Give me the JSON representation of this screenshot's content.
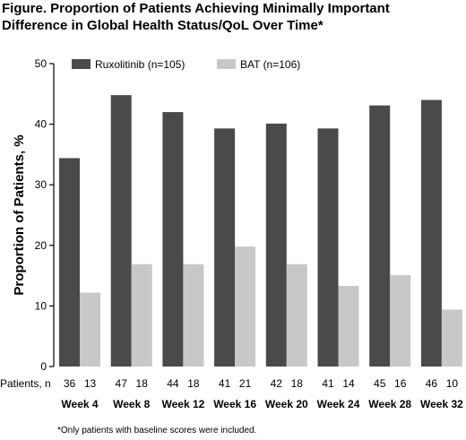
{
  "title_lines": [
    "Figure. Proportion of Patients Achieving Minimally Important",
    "Difference in Global Health Status/QoL Over Time*"
  ],
  "footnote": "*Only patients with baseline scores were included.",
  "patients_label": "Patients, n",
  "colors": {
    "ruxolitinib": "#4a4a4a",
    "bat": "#c8c8c8",
    "axis": "#000000"
  },
  "chart_data": {
    "type": "bar",
    "title": "Figure. Proportion of Patients Achieving Minimally Important Difference in Global Health Status/QoL Over Time*",
    "categories": [
      "Week 4",
      "Week 8",
      "Week 12",
      "Week 16",
      "Week 20",
      "Week 24",
      "Week 28",
      "Week 32"
    ],
    "series": [
      {
        "name": "Ruxolitinib (n=105)",
        "values": [
          34.4,
          44.8,
          42.0,
          39.3,
          40.1,
          39.3,
          43.1,
          44.0
        ],
        "patients_n": [
          36,
          47,
          44,
          41,
          42,
          41,
          45,
          46
        ]
      },
      {
        "name": "BAT (n=106)",
        "values": [
          12.2,
          16.9,
          16.9,
          19.8,
          16.9,
          13.3,
          15.1,
          9.4
        ],
        "patients_n": [
          13,
          18,
          18,
          21,
          18,
          14,
          16,
          10
        ]
      }
    ],
    "xlabel": "",
    "ylabel": "Proportion of Patients, %",
    "ylim": [
      0,
      50
    ],
    "yticks": [
      0,
      10,
      20,
      30,
      40,
      50
    ],
    "grid": false,
    "legend_position": "top"
  }
}
